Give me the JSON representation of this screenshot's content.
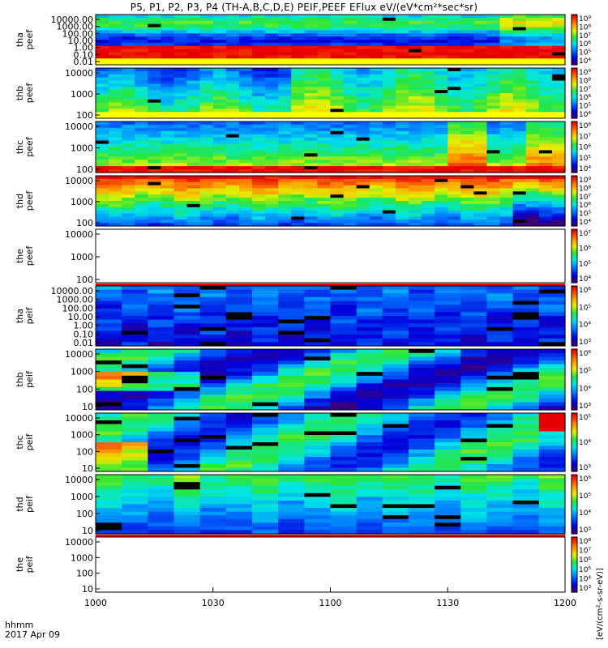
{
  "title": "P5, P1, P2, P3, P4 (TH-A,B,C,D,E) PEIF,PEEF EFlux eV/(eV*cm²*sec*sr)",
  "colorbar_label": "[eV/(cm²-s-sr-eV)]",
  "date_label": "2017 Apr 09",
  "time_label": "hhmm",
  "colors": {
    "black_band": "#000000",
    "red_band": "#ff0000",
    "yellow_band": "#ffff00"
  },
  "chart_data": {
    "type": "heatmap",
    "xlabel": "hhmm",
    "x_ticks": [
      "1000",
      "1030",
      "1100",
      "1130",
      "1200"
    ],
    "x_range": [
      "1000",
      "1200"
    ],
    "panels": [
      {
        "label": "tha\npeef",
        "line1": "tha",
        "line2": "peef",
        "yticks": [
          "10000.00",
          "1000.00",
          "100.00",
          "10.00",
          "1.00",
          "0.10",
          "0.01"
        ],
        "ylog": true,
        "cb_ticks": [
          "10⁹",
          "10⁸",
          "10⁷",
          "10⁶",
          "10⁵",
          "10⁴"
        ],
        "has_data": true,
        "profile": "tha_peef"
      },
      {
        "label": "thb\npeef",
        "line1": "thb",
        "line2": "peef",
        "yticks": [
          "10000",
          "1000",
          "100"
        ],
        "ylog": true,
        "cb_ticks": [
          "10⁹",
          "10⁸",
          "10⁷",
          "10⁶",
          "10⁵",
          "10⁴"
        ],
        "has_data": true,
        "profile": "thb_peef"
      },
      {
        "label": "thc\npeef",
        "line1": "thc",
        "line2": "peef",
        "yticks": [
          "10000",
          "1000",
          "100"
        ],
        "ylog": true,
        "cb_ticks": [
          "10⁸",
          "10⁷",
          "10⁶",
          "10⁵",
          "10⁴"
        ],
        "has_data": true,
        "profile": "thc_peef"
      },
      {
        "label": "thd\npeef",
        "line1": "thd",
        "line2": "peef",
        "yticks": [
          "10000",
          "1000",
          "100"
        ],
        "ylog": true,
        "cb_ticks": [
          "10⁹",
          "10⁸",
          "10⁷",
          "10⁶",
          "10⁵",
          "10⁴"
        ],
        "has_data": true,
        "profile": "thd_peef"
      },
      {
        "label": "the\npeef",
        "line1": "the",
        "line2": "peef",
        "yticks": [
          "10000",
          "1000",
          "100"
        ],
        "ylog": true,
        "cb_ticks": [
          "10⁷",
          "10⁶",
          "10⁵",
          "10⁴"
        ],
        "has_data": false,
        "profile": "empty"
      },
      {
        "label": "tha\npeif",
        "line1": "tha",
        "line2": "peif",
        "yticks": [
          "10000.00",
          "1000.00",
          "100.00",
          "10.00",
          "1.00",
          "0.10",
          "0.01"
        ],
        "ylog": true,
        "cb_ticks": [
          "10⁶",
          "10⁵",
          "10⁴",
          "10³"
        ],
        "has_data": true,
        "profile": "tha_peif"
      },
      {
        "label": "thb\npeif",
        "line1": "thb",
        "line2": "peif",
        "yticks": [
          "10000",
          "1000",
          "100",
          "10"
        ],
        "ylog": true,
        "cb_ticks": [
          "10⁶",
          "10⁵",
          "10⁴",
          "10³"
        ],
        "has_data": true,
        "profile": "thb_peif"
      },
      {
        "label": "thc\npeif",
        "line1": "thc",
        "line2": "peif",
        "yticks": [
          "10000",
          "1000",
          "100",
          "10"
        ],
        "ylog": true,
        "cb_ticks": [
          "10⁵",
          "10⁴",
          "10³"
        ],
        "has_data": true,
        "profile": "thc_peif"
      },
      {
        "label": "thd\npeif",
        "line1": "thd",
        "line2": "peif",
        "yticks": [
          "10000",
          "1000",
          "100",
          "10"
        ],
        "ylog": true,
        "cb_ticks": [
          "10⁶",
          "10⁵",
          "10⁴",
          "10³"
        ],
        "has_data": true,
        "profile": "thd_peif"
      },
      {
        "label": "the\npeif",
        "line1": "the",
        "line2": "peif",
        "yticks": [
          "10000",
          "1000",
          "100",
          "10"
        ],
        "ylog": true,
        "cb_ticks": [
          "10⁸",
          "10⁷",
          "10⁶",
          "10⁵",
          "10⁴",
          "10³"
        ],
        "has_data": false,
        "profile": "empty"
      }
    ]
  }
}
